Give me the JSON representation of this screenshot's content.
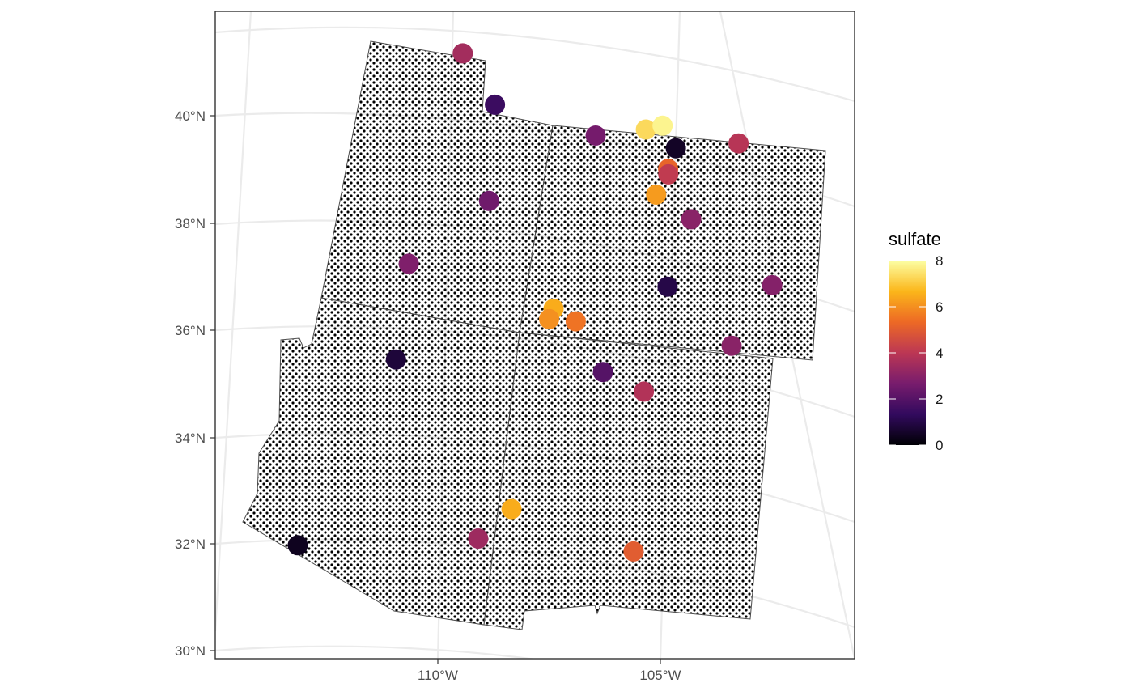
{
  "chart_data": {
    "type": "scatter",
    "map": true,
    "projection": "conic (Albers-like)",
    "background": "white",
    "graticule_color": "#ebebeb",
    "x_ticks": [
      "110°W",
      "105°W"
    ],
    "y_ticks": [
      "40°N",
      "38°N",
      "36°N",
      "34°N",
      "32°N",
      "30°N"
    ],
    "states": [
      "Utah",
      "Colorado",
      "Arizona",
      "New Mexico"
    ],
    "grid_points": "regular prediction grid of small black dots filling the four states",
    "legend": {
      "title": "sulfate",
      "position": "right",
      "ticks": [
        "0",
        "2",
        "4",
        "6",
        "8"
      ],
      "range": [
        0,
        8
      ],
      "colors": [
        "#000004",
        "#320a5e",
        "#781c6d",
        "#bc3754",
        "#ed6925",
        "#fbb61a",
        "#fcffa4"
      ]
    },
    "points": [
      {
        "lon": -109.7,
        "lat": 41.0,
        "sulfate": 3.5
      },
      {
        "lon": -108.9,
        "lat": 40.1,
        "sulfate": 1.5
      },
      {
        "lon": -106.5,
        "lat": 39.7,
        "sulfate": 2.6
      },
      {
        "lon": -105.3,
        "lat": 39.9,
        "sulfate": 7.3
      },
      {
        "lon": -104.9,
        "lat": 40.0,
        "sulfate": 7.8
      },
      {
        "lon": -104.6,
        "lat": 39.6,
        "sulfate": 0.5
      },
      {
        "lon": -103.1,
        "lat": 39.8,
        "sulfate": 3.9
      },
      {
        "lon": -104.8,
        "lat": 39.2,
        "sulfate": 5.2
      },
      {
        "lon": -104.8,
        "lat": 39.1,
        "sulfate": 4.1
      },
      {
        "lon": -105.1,
        "lat": 38.7,
        "sulfate": 6.2
      },
      {
        "lon": -104.3,
        "lat": 38.3,
        "sulfate": 3.0
      },
      {
        "lon": -109.0,
        "lat": 38.3,
        "sulfate": 2.5
      },
      {
        "lon": -110.8,
        "lat": 37.0,
        "sulfate": 2.8
      },
      {
        "lon": -102.5,
        "lat": 37.2,
        "sulfate": 2.9
      },
      {
        "lon": -104.9,
        "lat": 37.0,
        "sulfate": 1.0
      },
      {
        "lon": -107.5,
        "lat": 36.4,
        "sulfate": 6.5
      },
      {
        "lon": -107.6,
        "lat": 36.2,
        "sulfate": 6.0
      },
      {
        "lon": -107.0,
        "lat": 36.2,
        "sulfate": 5.5
      },
      {
        "lon": -103.5,
        "lat": 36.0,
        "sulfate": 3.0
      },
      {
        "lon": -111.0,
        "lat": 35.2,
        "sulfate": 0.8
      },
      {
        "lon": -106.4,
        "lat": 35.3,
        "sulfate": 2.0
      },
      {
        "lon": -105.5,
        "lat": 35.0,
        "sulfate": 3.8
      },
      {
        "lon": -108.4,
        "lat": 32.6,
        "sulfate": 6.5
      },
      {
        "lon": -109.1,
        "lat": 32.0,
        "sulfate": 3.4
      },
      {
        "lon": -105.8,
        "lat": 32.0,
        "sulfate": 5.0
      },
      {
        "lon": -112.9,
        "lat": 31.6,
        "sulfate": 0.4
      }
    ]
  }
}
